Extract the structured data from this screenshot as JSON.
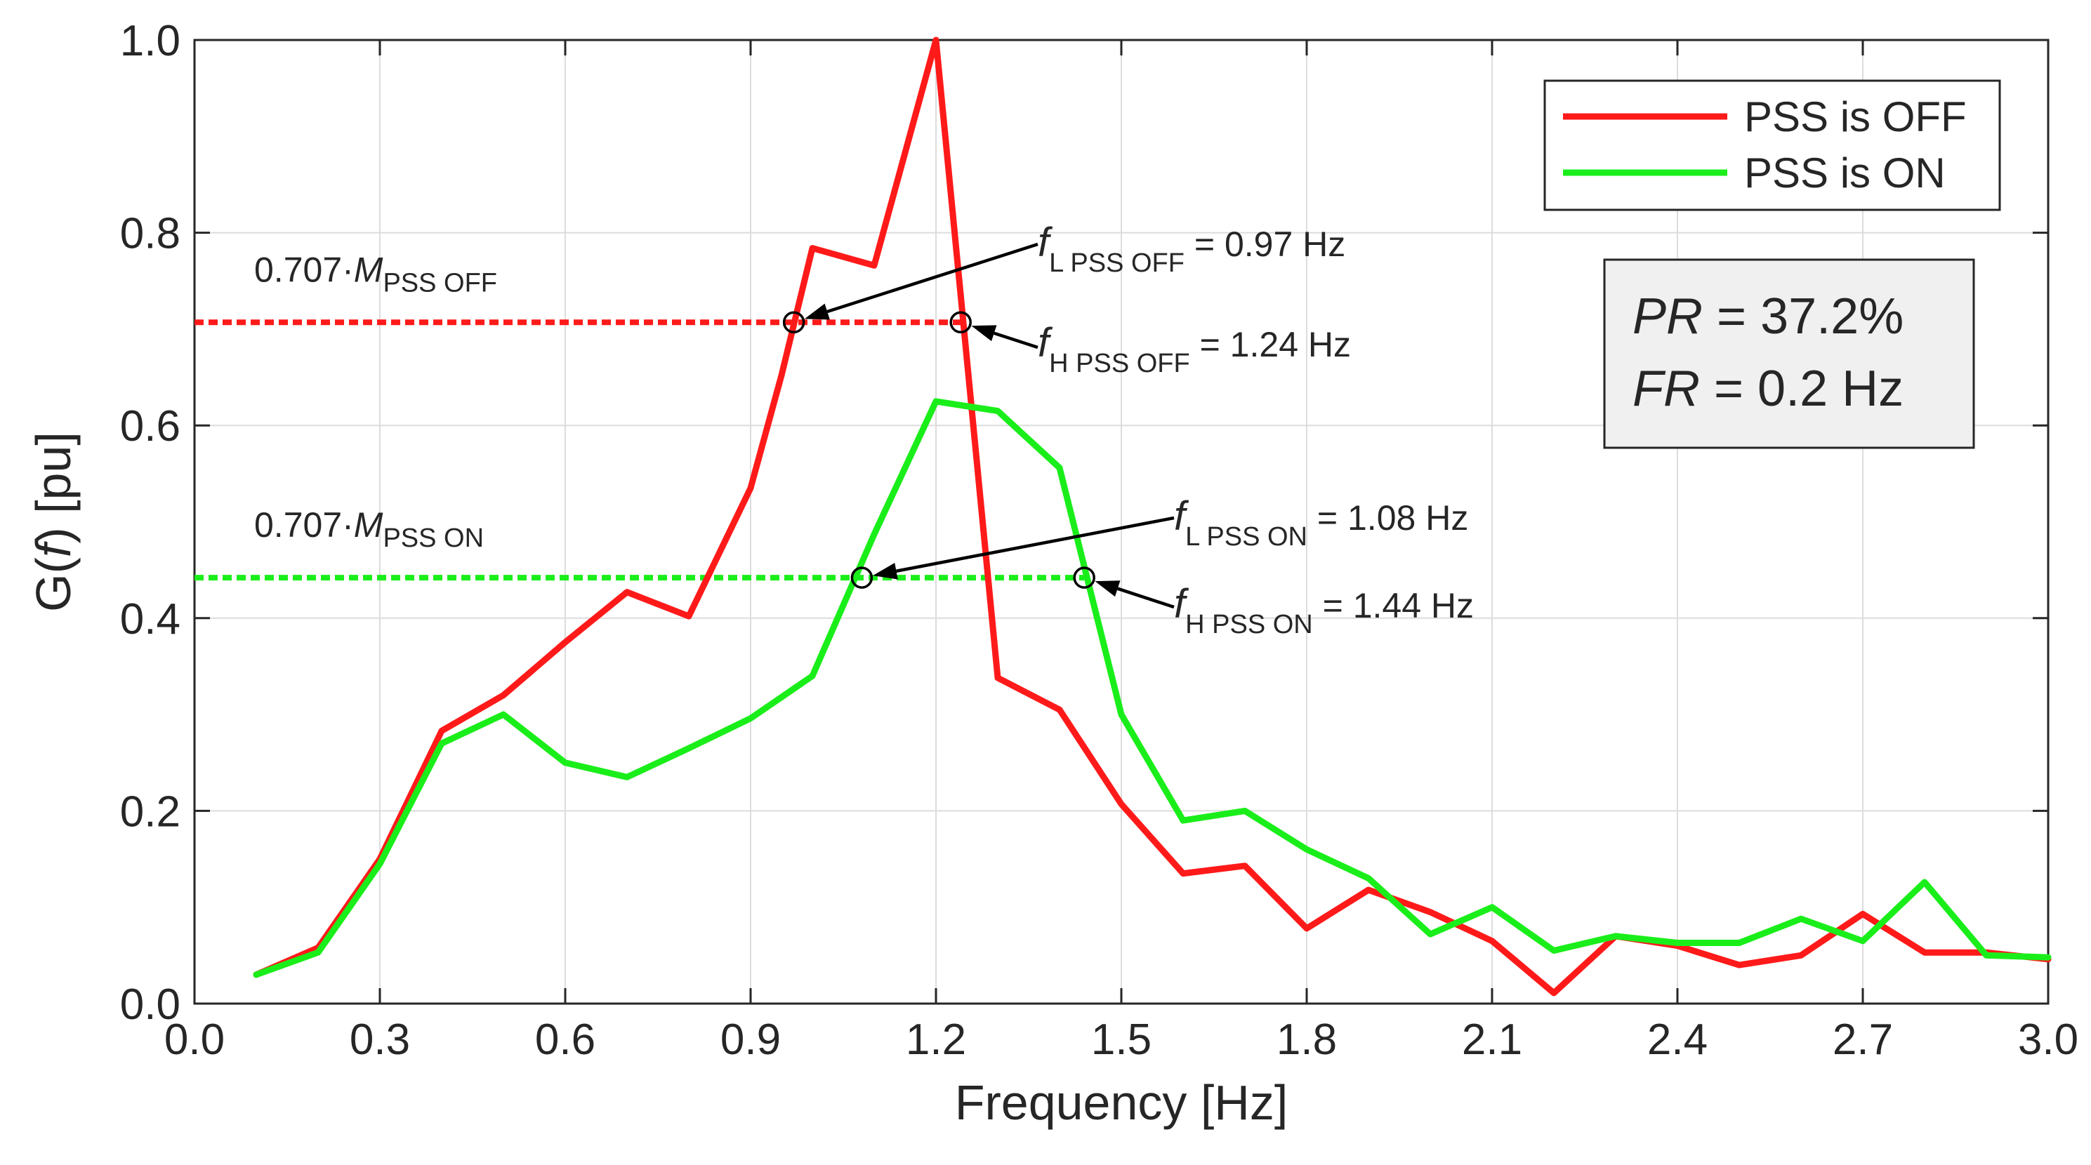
{
  "chart_data": {
    "type": "line",
    "xlabel": "Frequency [Hz]",
    "ylabel_parts": [
      "G(",
      "f",
      ") [pu]"
    ],
    "xlim": [
      0.0,
      3.0
    ],
    "ylim": [
      0.0,
      1.0
    ],
    "grid": true,
    "xticks": [
      0.0,
      0.3,
      0.6,
      0.9,
      1.2,
      1.5,
      1.8,
      2.1,
      2.4,
      2.7,
      3.0
    ],
    "xtick_labels": [
      "0.0",
      "0.3",
      "0.6",
      "0.9",
      "1.2",
      "1.5",
      "1.8",
      "2.1",
      "2.4",
      "2.7",
      "3.0"
    ],
    "yticks": [
      0.0,
      0.2,
      0.4,
      0.6,
      0.8,
      1.0
    ],
    "ytick_labels": [
      "0.0",
      "0.2",
      "0.4",
      "0.6",
      "0.8",
      "1.0"
    ],
    "legend_position": "top-right",
    "series": [
      {
        "name": "PSS is OFF",
        "color": "#ff1a1a",
        "x": [
          0.1,
          0.2,
          0.3,
          0.4,
          0.5,
          0.6,
          0.7,
          0.8,
          0.9,
          0.95,
          1.0,
          1.1,
          1.2,
          1.3,
          1.4,
          1.5,
          1.6,
          1.7,
          1.8,
          1.9,
          2.0,
          2.1,
          2.2,
          2.3,
          2.4,
          2.5,
          2.6,
          2.7,
          2.8,
          2.9,
          3.0
        ],
        "values": [
          0.03,
          0.058,
          0.15,
          0.283,
          0.32,
          0.375,
          0.427,
          0.402,
          0.535,
          0.652,
          0.784,
          0.766,
          1.0,
          0.338,
          0.305,
          0.207,
          0.135,
          0.143,
          0.078,
          0.118,
          0.095,
          0.065,
          0.011,
          0.07,
          0.06,
          0.04,
          0.05,
          0.093,
          0.053,
          0.053,
          0.046
        ]
      },
      {
        "name": "PSS is ON",
        "color": "#1aee1a",
        "x": [
          0.1,
          0.2,
          0.3,
          0.4,
          0.5,
          0.6,
          0.7,
          0.8,
          0.9,
          1.0,
          1.1,
          1.2,
          1.3,
          1.4,
          1.5,
          1.6,
          1.7,
          1.8,
          1.9,
          2.0,
          2.1,
          2.2,
          2.3,
          2.4,
          2.5,
          2.6,
          2.7,
          2.8,
          2.9,
          3.0
        ],
        "values": [
          0.03,
          0.053,
          0.145,
          0.27,
          0.3,
          0.25,
          0.235,
          0.265,
          0.296,
          0.34,
          0.487,
          0.625,
          0.615,
          0.556,
          0.3,
          0.19,
          0.2,
          0.16,
          0.13,
          0.072,
          0.1,
          0.055,
          0.07,
          0.063,
          0.063,
          0.088,
          0.065,
          0.126,
          0.05,
          0.048
        ]
      }
    ],
    "reference_lines": [
      {
        "label_parts": [
          "0.707·",
          "M",
          "PSS OFF"
        ],
        "y": 0.707,
        "x_start": 0.0,
        "x_end": 1.24,
        "color": "#ff1a1a"
      },
      {
        "label_parts": [
          "0.707·",
          "M",
          "PSS ON"
        ],
        "y": 0.442,
        "x_start": 0.0,
        "x_end": 1.44,
        "color": "#1aee1a"
      }
    ],
    "markers": [
      {
        "x": 0.97,
        "y": 0.707
      },
      {
        "x": 1.24,
        "y": 0.707
      },
      {
        "x": 1.08,
        "y": 0.442
      },
      {
        "x": 1.44,
        "y": 0.442
      }
    ],
    "annotations": [
      {
        "id": "fl-off",
        "sym": "f",
        "sub": "L PSS OFF",
        "value": "= 0.97 Hz",
        "point": [
          0.97,
          0.707
        ]
      },
      {
        "id": "fh-off",
        "sym": "f",
        "sub": "H PSS OFF",
        "value": "= 1.24 Hz",
        "point": [
          1.24,
          0.707
        ]
      },
      {
        "id": "fl-on",
        "sym": "f",
        "sub": "L PSS ON",
        "value": "= 1.08 Hz",
        "point": [
          1.08,
          0.442
        ]
      },
      {
        "id": "fh-on",
        "sym": "f",
        "sub": "H PSS ON",
        "value": "= 1.44 Hz",
        "point": [
          1.44,
          0.442
        ]
      }
    ],
    "metrics": [
      {
        "sym": "PR",
        "value": " = 37.2%"
      },
      {
        "sym": "FR",
        "value": " = 0.2 Hz"
      }
    ]
  }
}
